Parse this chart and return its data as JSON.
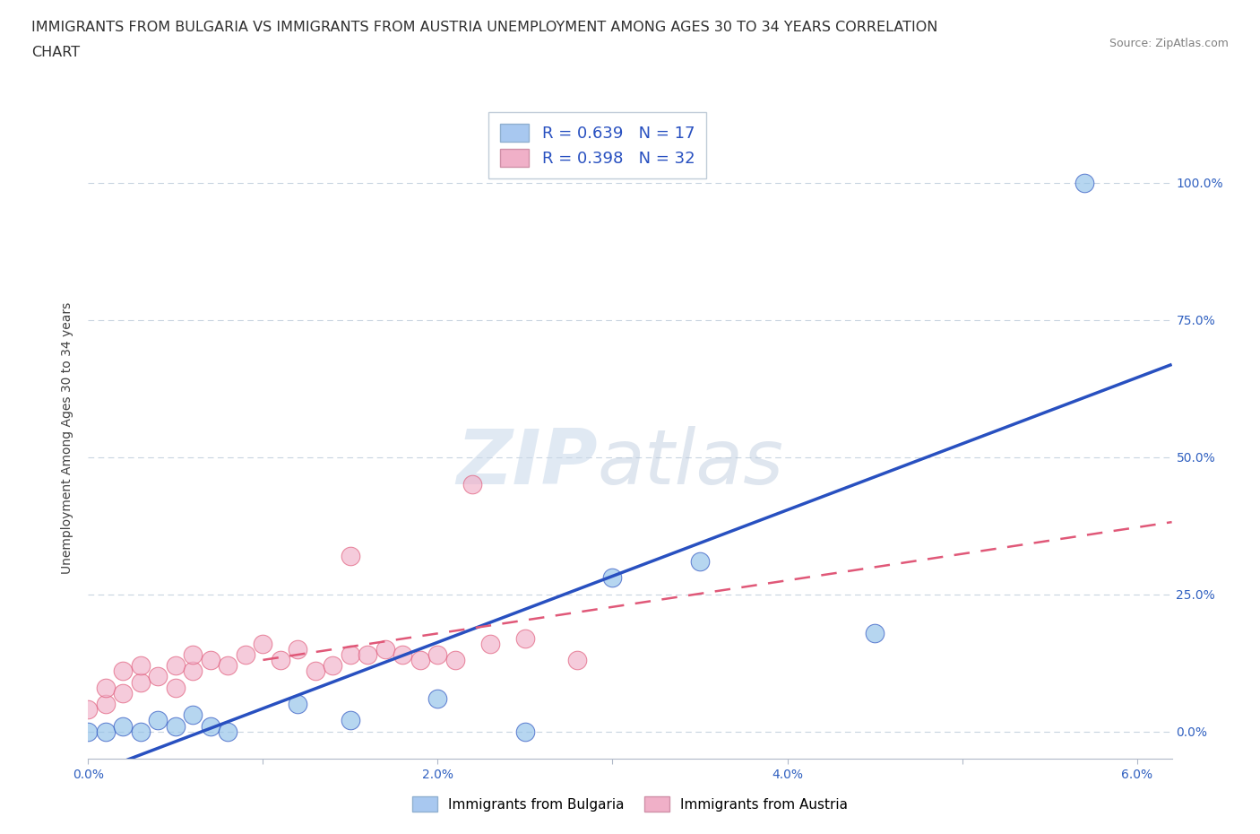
{
  "title_line1": "IMMIGRANTS FROM BULGARIA VS IMMIGRANTS FROM AUSTRIA UNEMPLOYMENT AMONG AGES 30 TO 34 YEARS CORRELATION",
  "title_line2": "CHART",
  "source_text": "Source: ZipAtlas.com",
  "ylabel": "Unemployment Among Ages 30 to 34 years",
  "xlim": [
    0.0,
    0.062
  ],
  "ylim": [
    -0.05,
    1.12
  ],
  "xticks": [
    0.0,
    0.01,
    0.02,
    0.03,
    0.04,
    0.05,
    0.06
  ],
  "xticklabels": [
    "0.0%",
    "",
    "2.0%",
    "",
    "4.0%",
    "",
    "6.0%"
  ],
  "ytick_positions": [
    0.0,
    0.25,
    0.5,
    0.75,
    1.0
  ],
  "ytick_labels": [
    "0.0%",
    "25.0%",
    "50.0%",
    "75.0%",
    "100.0%"
  ],
  "watermark_zip": "ZIP",
  "watermark_atlas": "atlas",
  "legend_r1": "R = 0.639   N = 17",
  "legend_r2": "R = 0.398   N = 32",
  "legend_color1": "#a8c8f0",
  "legend_color2": "#f0b0c8",
  "color_bulgaria": "#90c0e8",
  "color_austria": "#f0b0c8",
  "line_color_bulgaria": "#2850c0",
  "line_color_austria": "#e05878",
  "bulgaria_x": [
    0.0,
    0.001,
    0.002,
    0.003,
    0.004,
    0.005,
    0.006,
    0.007,
    0.008,
    0.012,
    0.015,
    0.02,
    0.025,
    0.03,
    0.035,
    0.045,
    0.057
  ],
  "bulgaria_y": [
    0.0,
    0.0,
    0.01,
    0.0,
    0.02,
    0.01,
    0.03,
    0.01,
    0.0,
    0.05,
    0.02,
    0.06,
    0.0,
    0.28,
    0.31,
    0.18,
    1.0
  ],
  "austria_x": [
    0.0,
    0.001,
    0.001,
    0.002,
    0.002,
    0.003,
    0.003,
    0.004,
    0.005,
    0.005,
    0.006,
    0.006,
    0.007,
    0.008,
    0.009,
    0.01,
    0.011,
    0.012,
    0.013,
    0.014,
    0.015,
    0.015,
    0.016,
    0.017,
    0.018,
    0.019,
    0.02,
    0.021,
    0.022,
    0.023,
    0.025,
    0.028
  ],
  "austria_y": [
    0.04,
    0.05,
    0.08,
    0.07,
    0.11,
    0.09,
    0.12,
    0.1,
    0.08,
    0.12,
    0.11,
    0.14,
    0.13,
    0.12,
    0.14,
    0.16,
    0.13,
    0.15,
    0.11,
    0.12,
    0.14,
    0.32,
    0.14,
    0.15,
    0.14,
    0.13,
    0.14,
    0.13,
    0.45,
    0.16,
    0.17,
    0.13
  ],
  "bg_color": "#ffffff",
  "grid_color": "#c8d4e0",
  "title_fontsize": 11.5,
  "axis_label_fontsize": 10,
  "tick_fontsize": 10,
  "legend_fontsize": 13
}
